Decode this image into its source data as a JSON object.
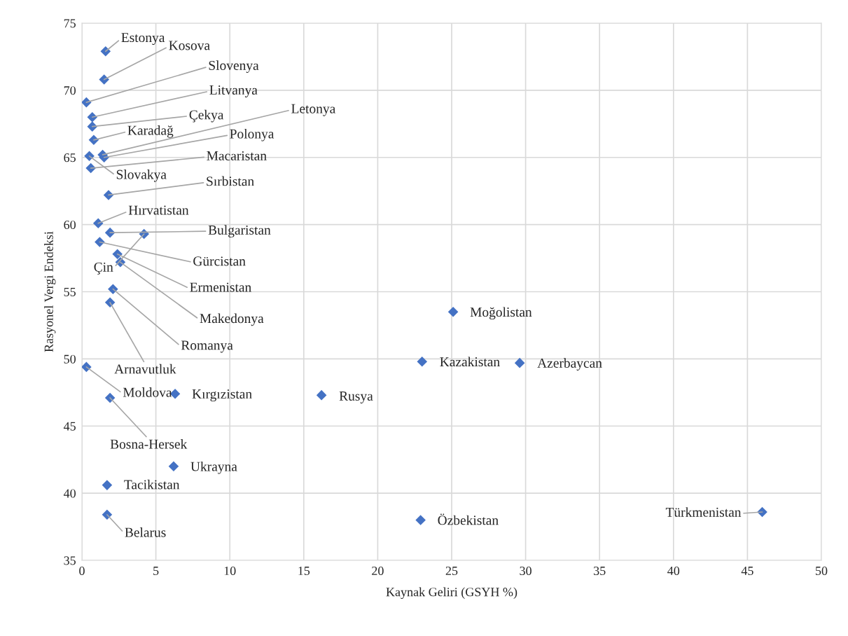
{
  "chart_data": {
    "type": "scatter",
    "xlabel": "Kaynak Geliri (GSYH %)",
    "ylabel": "Rasyonel Vergi Endeksi",
    "xlim": [
      0,
      50
    ],
    "xticks": [
      0,
      5,
      10,
      15,
      20,
      25,
      30,
      35,
      40,
      45,
      50
    ],
    "ylim": [
      35,
      75
    ],
    "yticks": [
      35,
      40,
      45,
      50,
      55,
      60,
      65,
      70,
      75
    ],
    "grid": true,
    "marker": "diamond",
    "series": [
      {
        "color": "#4472c4",
        "x": [
          1.6,
          1.5,
          0.3,
          0.7,
          0.7,
          0.8,
          1.4,
          1.5,
          0.6,
          0.5,
          1.8,
          1.1,
          1.9,
          4.2,
          1.2,
          2.4,
          2.6,
          2.1,
          1.9,
          0.3,
          1.9,
          6.3,
          6.2,
          1.7,
          1.7,
          25.1,
          23.0,
          29.6,
          16.2,
          22.9,
          46.0
        ],
        "values": [
          72.9,
          70.8,
          69.1,
          68.0,
          67.3,
          66.3,
          65.2,
          65.0,
          64.2,
          65.1,
          62.2,
          60.1,
          59.4,
          59.3,
          58.7,
          57.8,
          57.2,
          55.2,
          54.2,
          49.4,
          47.1,
          47.4,
          42.0,
          40.6,
          38.4,
          53.5,
          49.8,
          49.7,
          47.3,
          38.0,
          38.6
        ]
      }
    ],
    "annotations": [
      {
        "text": "Estonya",
        "x": 1.6,
        "y": 72.9
      },
      {
        "text": "Kosova",
        "x": 1.5,
        "y": 70.8
      },
      {
        "text": "Slovenya",
        "x": 0.3,
        "y": 69.1
      },
      {
        "text": "Litvanya",
        "x": 0.7,
        "y": 68.0
      },
      {
        "text": "Çekya",
        "x": 0.7,
        "y": 67.3
      },
      {
        "text": "Karadağ",
        "x": 0.8,
        "y": 66.3
      },
      {
        "text": "Letonya",
        "x": 1.4,
        "y": 65.2
      },
      {
        "text": "Polonya",
        "x": 1.5,
        "y": 65.0
      },
      {
        "text": "Macaristan",
        "x": 0.6,
        "y": 64.2
      },
      {
        "text": "Slovakya",
        "x": 0.5,
        "y": 65.1
      },
      {
        "text": "Sırbistan",
        "x": 1.8,
        "y": 62.2
      },
      {
        "text": "Hırvatistan",
        "x": 1.1,
        "y": 60.1
      },
      {
        "text": "Bulgaristan",
        "x": 1.9,
        "y": 59.4
      },
      {
        "text": "Çin",
        "x": 4.2,
        "y": 59.3
      },
      {
        "text": "Gürcistan",
        "x": 1.2,
        "y": 58.7
      },
      {
        "text": "Ermenistan",
        "x": 2.4,
        "y": 57.8
      },
      {
        "text": "Makedonya",
        "x": 2.6,
        "y": 57.2
      },
      {
        "text": "Romanya",
        "x": 2.1,
        "y": 55.2
      },
      {
        "text": "Arnavutluk",
        "x": 1.9,
        "y": 54.2
      },
      {
        "text": "Moldova",
        "x": 0.3,
        "y": 49.4
      },
      {
        "text": "Bosna-Hersek",
        "x": 1.9,
        "y": 47.1
      },
      {
        "text": "Kırgızistan",
        "x": 6.3,
        "y": 47.4
      },
      {
        "text": "Ukrayna",
        "x": 6.2,
        "y": 42.0
      },
      {
        "text": "Tacikistan",
        "x": 1.7,
        "y": 40.6
      },
      {
        "text": "Belarus",
        "x": 1.7,
        "y": 38.4
      },
      {
        "text": "Moğolistan",
        "x": 25.1,
        "y": 53.5
      },
      {
        "text": "Kazakistan",
        "x": 23.0,
        "y": 49.8
      },
      {
        "text": "Azerbaycan",
        "x": 29.6,
        "y": 49.7
      },
      {
        "text": "Rusya",
        "x": 16.2,
        "y": 47.3
      },
      {
        "text": "Özbekistan",
        "x": 22.9,
        "y": 38.0
      },
      {
        "text": "Türkmenistan",
        "x": 46.0,
        "y": 38.6
      }
    ]
  }
}
